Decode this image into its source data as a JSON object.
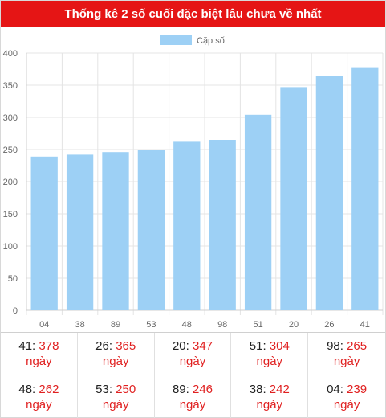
{
  "header": {
    "title": "Thống kê 2 số cuối đặc biệt lâu chưa về nhất"
  },
  "chart_data": {
    "type": "bar",
    "categories": [
      "04",
      "38",
      "89",
      "53",
      "48",
      "98",
      "51",
      "20",
      "26",
      "41"
    ],
    "series": [
      {
        "name": "Cặp số",
        "values": [
          239,
          242,
          246,
          250,
          262,
          265,
          304,
          347,
          365,
          378
        ],
        "color": "#9dd0f5"
      }
    ],
    "ylim": [
      0,
      400
    ],
    "yticks": [
      0,
      50,
      100,
      150,
      200,
      250,
      300,
      350,
      400
    ],
    "grid": true,
    "legend_position": "top-center"
  },
  "stats": {
    "unit_label": "ngày",
    "rows": [
      [
        {
          "pair": "41",
          "days": "378"
        },
        {
          "pair": "26",
          "days": "365"
        },
        {
          "pair": "20",
          "days": "347"
        },
        {
          "pair": "51",
          "days": "304"
        },
        {
          "pair": "98",
          "days": "265"
        }
      ],
      [
        {
          "pair": "48",
          "days": "262"
        },
        {
          "pair": "53",
          "days": "250"
        },
        {
          "pair": "89",
          "days": "246"
        },
        {
          "pair": "38",
          "days": "242"
        },
        {
          "pair": "04",
          "days": "239"
        }
      ]
    ]
  }
}
